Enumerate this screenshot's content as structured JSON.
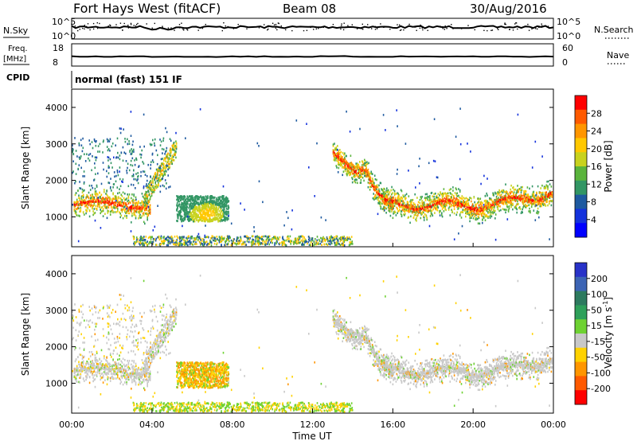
{
  "header": {
    "station": "Fort Hays West (fitACF)",
    "beam": "Beam 08",
    "date": "30/Aug/2016"
  },
  "top_panels": {
    "nsky_label": "N.Sky",
    "nsky_ticks": [
      "10^5",
      "10^0"
    ],
    "nsearch_label": "N.Search",
    "nsearch_ticks": [
      "10^5",
      "10^0"
    ],
    "freq_label": "Freq.",
    "freq_unit": "[MHz]",
    "freq_ticks": [
      "18",
      "8"
    ],
    "nave_label": "Nave",
    "nave_ticks": [
      "60",
      "0"
    ],
    "cpid_label": "CPID",
    "cpid_value": "normal (fast) 151 IF"
  },
  "chart_data": [
    {
      "type": "heatmap",
      "quantity": "Power",
      "xlabel": "",
      "ylabel": "Slant Range [km]",
      "xlim": [
        0,
        24
      ],
      "ylim": [
        180,
        4500
      ],
      "yticks": [
        "4000",
        "3000",
        "2000",
        "1000"
      ],
      "colorbar": {
        "label": "Power [dB]",
        "ticks": [
          "28",
          "24",
          "20",
          "16",
          "12",
          "8",
          "4"
        ],
        "colors": [
          "#ff0000",
          "#ff5a00",
          "#ff9600",
          "#ffc800",
          "#c8d21e",
          "#5ab43c",
          "#329664",
          "#1e5aa0",
          "#1432dc",
          "#0000ff"
        ]
      }
    },
    {
      "type": "heatmap",
      "quantity": "Velocity",
      "xlabel": "Time UT",
      "ylabel": "Slant Range [km]",
      "xlim": [
        0,
        24
      ],
      "ylim": [
        180,
        4500
      ],
      "xticks": [
        "00:00",
        "04:00",
        "08:00",
        "12:00",
        "16:00",
        "20:00",
        "00:00"
      ],
      "yticks": [
        "4000",
        "3000",
        "2000",
        "1000"
      ],
      "colorbar": {
        "label": "Velocity [m s^-1]",
        "ticks": [
          "200",
          "100",
          "50",
          "15",
          "-15",
          "-50",
          "-100",
          "-200"
        ],
        "colors": [
          "#2832c8",
          "#3c64b4",
          "#2d7a5f",
          "#2ea05a",
          "#6ed232",
          "#c8c8c8",
          "#ffd200",
          "#ff9600",
          "#ff5a00",
          "#ff0000"
        ]
      }
    }
  ]
}
